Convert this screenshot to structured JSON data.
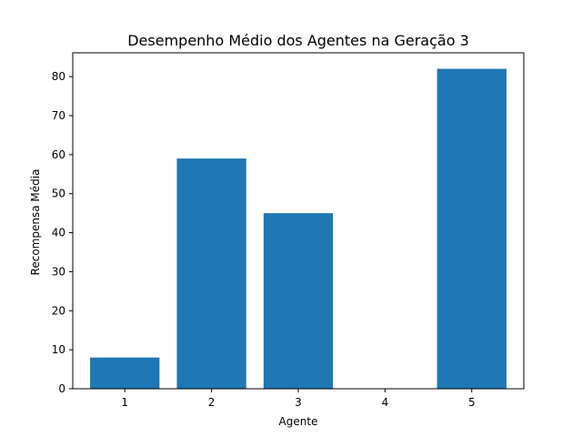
{
  "chart_data": {
    "type": "bar",
    "title": "Desempenho Médio dos Agentes na Geração 3",
    "xlabel": "Agente",
    "ylabel": "Recompensa Média",
    "categories": [
      "1",
      "2",
      "3",
      "4",
      "5"
    ],
    "values": [
      8,
      59,
      45,
      0,
      82
    ],
    "ylim": [
      0,
      86.1
    ],
    "yticks": [
      0,
      10,
      20,
      30,
      40,
      50,
      60,
      70,
      80
    ],
    "grid": false,
    "bar_color": "#1f77b4"
  }
}
